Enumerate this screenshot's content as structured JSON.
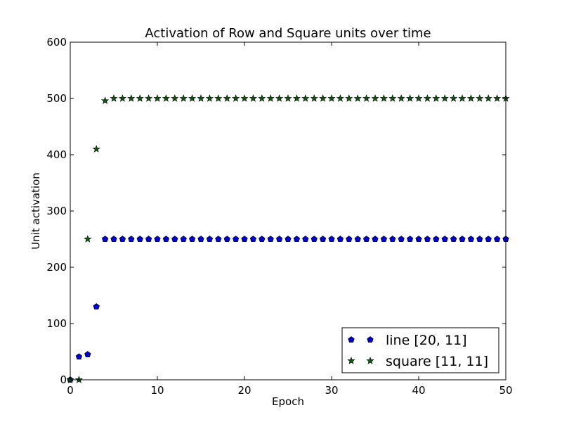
{
  "chart_data": {
    "type": "scatter",
    "title": "Activation of Row and Square units over time",
    "xlabel": "Epoch",
    "ylabel": "Unit activation",
    "xlim": [
      0,
      50
    ],
    "ylim": [
      0,
      600
    ],
    "xticks": [
      0,
      10,
      20,
      30,
      40,
      50
    ],
    "yticks": [
      0,
      100,
      200,
      300,
      400,
      500,
      600
    ],
    "grid": false,
    "legend_position": "lower-right",
    "series": [
      {
        "name": "line [20, 11]",
        "marker": "pentagon",
        "color": "#0000cc",
        "x": [
          0,
          1,
          2,
          3,
          4,
          5,
          6,
          7,
          8,
          9,
          10,
          11,
          12,
          13,
          14,
          15,
          16,
          17,
          18,
          19,
          20,
          21,
          22,
          23,
          24,
          25,
          26,
          27,
          28,
          29,
          30,
          31,
          32,
          33,
          34,
          35,
          36,
          37,
          38,
          39,
          40,
          41,
          42,
          43,
          44,
          45,
          46,
          47,
          48,
          49,
          50
        ],
        "y": [
          0,
          41,
          45,
          130,
          250,
          250,
          250,
          250,
          250,
          250,
          250,
          250,
          250,
          250,
          250,
          250,
          250,
          250,
          250,
          250,
          250,
          250,
          250,
          250,
          250,
          250,
          250,
          250,
          250,
          250,
          250,
          250,
          250,
          250,
          250,
          250,
          250,
          250,
          250,
          250,
          250,
          250,
          250,
          250,
          250,
          250,
          250,
          250,
          250,
          250,
          250
        ]
      },
      {
        "name": "square [11, 11]",
        "marker": "star",
        "color": "#0a5a0a",
        "x": [
          0,
          1,
          2,
          3,
          4,
          5,
          6,
          7,
          8,
          9,
          10,
          11,
          12,
          13,
          14,
          15,
          16,
          17,
          18,
          19,
          20,
          21,
          22,
          23,
          24,
          25,
          26,
          27,
          28,
          29,
          30,
          31,
          32,
          33,
          34,
          35,
          36,
          37,
          38,
          39,
          40,
          41,
          42,
          43,
          44,
          45,
          46,
          47,
          48,
          49,
          50
        ],
        "y": [
          0,
          0,
          250,
          410,
          496,
          500,
          500,
          500,
          500,
          500,
          500,
          500,
          500,
          500,
          500,
          500,
          500,
          500,
          500,
          500,
          500,
          500,
          500,
          500,
          500,
          500,
          500,
          500,
          500,
          500,
          500,
          500,
          500,
          500,
          500,
          500,
          500,
          500,
          500,
          500,
          500,
          500,
          500,
          500,
          500,
          500,
          500,
          500,
          500,
          500,
          500
        ]
      }
    ]
  }
}
